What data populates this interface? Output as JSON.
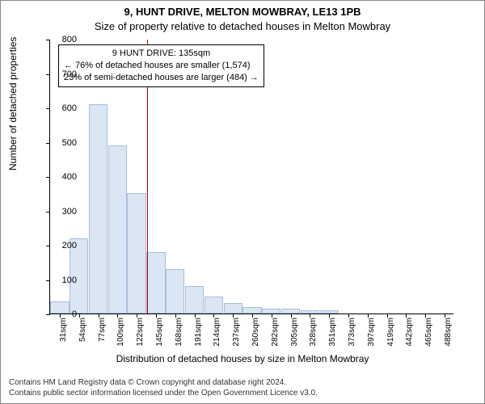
{
  "title_main": "9, HUNT DRIVE, MELTON MOWBRAY, LE13 1PB",
  "title_sub": "Size of property relative to detached houses in Melton Mowbray",
  "y_axis_label": "Number of detached properties",
  "x_axis_label": "Distribution of detached houses by size in Melton Mowbray",
  "attribution_line1": "Contains HM Land Registry data © Crown copyright and database right 2024.",
  "attribution_line2": "Contains public sector information licensed under the Open Government Licence v3.0.",
  "annotation": {
    "line1": "9 HUNT DRIVE: 135sqm",
    "line2": "← 76% of detached houses are smaller (1,574)",
    "line3": "23% of semi-detached houses are larger (484) →"
  },
  "chart": {
    "type": "histogram",
    "ylim": [
      0,
      800
    ],
    "ytick_step": 100,
    "x_categories": [
      "31sqm",
      "54sqm",
      "77sqm",
      "100sqm",
      "122sqm",
      "145sqm",
      "168sqm",
      "191sqm",
      "214sqm",
      "237sqm",
      "260sqm",
      "282sqm",
      "305sqm",
      "328sqm",
      "351sqm",
      "373sqm",
      "397sqm",
      "419sqm",
      "442sqm",
      "465sqm",
      "488sqm"
    ],
    "bar_values": [
      35,
      218,
      610,
      490,
      350,
      180,
      130,
      80,
      50,
      30,
      20,
      15,
      15,
      10,
      10,
      0,
      0,
      0,
      0,
      0,
      0
    ],
    "bar_fill": "#dbe6f4",
    "bar_stroke": "#a8bddb",
    "ref_line_value": 135,
    "ref_line_color": "#cc0000",
    "background_color": "#ffffff",
    "title_fontsize": 13,
    "axis_label_fontsize": 12,
    "tick_fontsize": 11
  }
}
